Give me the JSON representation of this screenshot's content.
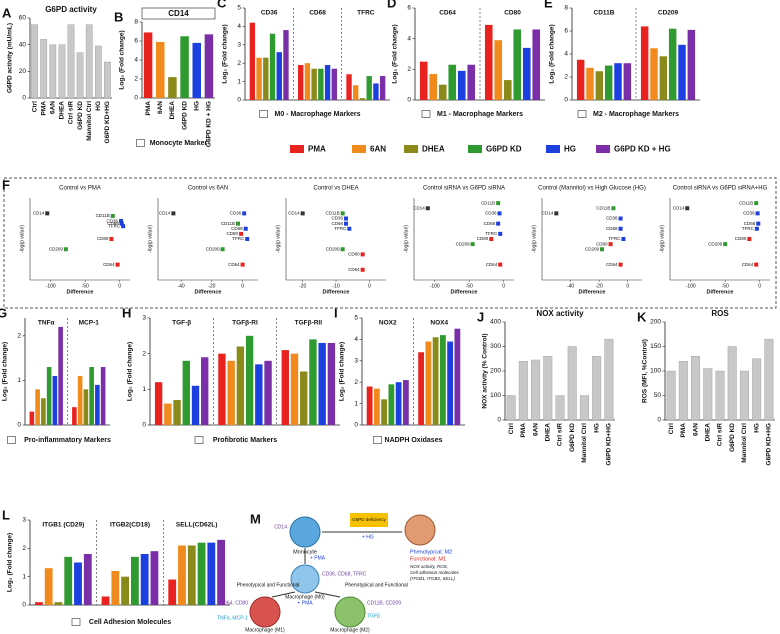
{
  "legend": [
    {
      "name": "PMA",
      "color": "#e8231f"
    },
    {
      "name": "6AN",
      "color": "#f08a1c"
    },
    {
      "name": "DHEA",
      "color": "#8a8a1a"
    },
    {
      "name": "G6PD KD",
      "color": "#2f9a2f"
    },
    {
      "name": "HG",
      "color": "#1c3fe0"
    },
    {
      "name": "G6PD KD + HG",
      "color": "#7a2fa8"
    }
  ],
  "chart_data": [
    {
      "type": "bar",
      "panel": "A",
      "title": "G6PD activity",
      "y_label": "G6PD activity (mU/mL)",
      "color": "#c8c8c8",
      "categories": [
        "Ctrl",
        "PMA",
        "6AN",
        "DHEA",
        "Ctrl siR",
        "G6PD KD",
        "Mannitol Ctrl",
        "HG",
        "G6PD KD+HG"
      ],
      "values": [
        55,
        44,
        40,
        40,
        55,
        34,
        55,
        39,
        27
      ],
      "ylim": [
        0,
        60
      ],
      "yticks": [
        0,
        20,
        40,
        60
      ]
    },
    {
      "type": "bar",
      "panel": "B",
      "title": "CD14",
      "y_label": "Log₂ (Fold change)",
      "x_label": "Monocyte Marker",
      "categories": [
        "PMA",
        "6AN",
        "DHEA",
        "G6PD KD",
        "HG",
        "G6PD KD + HG"
      ],
      "values": [
        6.9,
        5.9,
        2.2,
        6.5,
        5.8,
        6.7
      ],
      "ylim": [
        0,
        8
      ],
      "yticks": [
        0,
        2,
        4,
        6,
        8
      ]
    },
    {
      "type": "grouped_bar",
      "panel": "C",
      "y_label": "Log₂ (Fold change)",
      "x_label": "M0 - Macrophage Markers",
      "groups": [
        "CD36",
        "CD68",
        "TFRC"
      ],
      "values": [
        [
          4.2,
          2.3,
          2.3,
          3.6,
          2.6,
          3.8
        ],
        [
          1.9,
          2.0,
          1.7,
          1.7,
          1.9,
          1.7
        ],
        [
          1.4,
          0.8,
          0.1,
          1.3,
          0.9,
          1.3
        ]
      ],
      "ylim": [
        0,
        5
      ],
      "yticks": [
        0,
        1,
        2,
        3,
        4,
        5
      ]
    },
    {
      "type": "grouped_bar",
      "panel": "D",
      "y_label": "Log₂ (Fold change)",
      "x_label": "M1 - Macrophage Markers",
      "groups": [
        "CD64",
        "CD80"
      ],
      "values": [
        [
          2.5,
          1.7,
          1.0,
          2.3,
          1.9,
          2.3
        ],
        [
          4.9,
          3.9,
          1.3,
          4.6,
          3.4,
          4.6
        ]
      ],
      "ylim": [
        0,
        6
      ],
      "yticks": [
        0,
        2,
        4,
        6
      ]
    },
    {
      "type": "grouped_bar",
      "panel": "E",
      "y_label": "Log₂ (Fold change)",
      "x_label": "M2 - Macrophage Markers",
      "groups": [
        "CD11B",
        "CD209"
      ],
      "values": [
        [
          3.5,
          2.8,
          2.5,
          3.0,
          3.2,
          3.2
        ],
        [
          6.4,
          4.5,
          3.8,
          6.2,
          4.8,
          6.1
        ]
      ],
      "ylim": [
        0,
        8
      ],
      "yticks": [
        0,
        2,
        4,
        6,
        8
      ]
    },
    {
      "type": "scatter",
      "panel": "F",
      "title": "Control vs PMA",
      "y_label": "-log(p value)",
      "x_label": "Difference",
      "point_labels": [
        "CD14",
        "CD11B",
        "CD209",
        "CD36",
        "CD68",
        "TFRC",
        "CD80",
        "CD64"
      ],
      "point_colors": [
        "#333333",
        "#2f9a2f",
        "#2f9a2f",
        "#1c3fe0",
        "#1c3fe0",
        "#1c3fe0",
        "#e8231f",
        "#e8231f"
      ],
      "x": [
        -105,
        -10,
        -78,
        2,
        3,
        5,
        -12,
        -3
      ],
      "y": [
        13,
        12.5,
        6,
        11.5,
        11,
        10.5,
        8,
        3
      ],
      "xlim": [
        -130,
        15
      ],
      "xticks": [
        -100,
        -50,
        0
      ],
      "ylim": [
        0,
        16
      ]
    },
    {
      "type": "scatter",
      "title": "Control vs 6AN",
      "y_label": "-log(p value)",
      "x_label": "Difference",
      "point_labels": [
        "CD14",
        "CD11B",
        "CD209",
        "CD36",
        "CD68",
        "TFRC",
        "CD80",
        "CD64"
      ],
      "point_colors": [
        "#333333",
        "#2f9a2f",
        "#2f9a2f",
        "#1c3fe0",
        "#1c3fe0",
        "#1c3fe0",
        "#e8231f",
        "#e8231f"
      ],
      "x": [
        -45,
        -3,
        -13,
        1,
        2,
        3,
        -1,
        0
      ],
      "y": [
        13,
        11,
        6,
        13,
        10,
        8,
        9,
        3
      ],
      "xlim": [
        -55,
        10
      ],
      "xticks": [
        -40,
        -20,
        0
      ],
      "ylim": [
        0,
        16
      ]
    },
    {
      "type": "scatter",
      "title": "Control vs DHEA",
      "y_label": "-log(p value)",
      "x_label": "Difference",
      "point_labels": [
        "CD14",
        "CD11B",
        "CD209",
        "CD36",
        "CD68",
        "TFRC",
        "CD80",
        "CD64"
      ],
      "point_colors": [
        "#333333",
        "#2f9a2f",
        "#2f9a2f",
        "#1c3fe0",
        "#1c3fe0",
        "#1c3fe0",
        "#e8231f",
        "#e8231f"
      ],
      "x": [
        -20,
        -8,
        -8,
        -7,
        -7,
        -6,
        -2,
        -2
      ],
      "y": [
        13,
        13,
        6,
        12,
        11,
        10,
        5,
        2
      ],
      "xlim": [
        -25,
        5
      ],
      "xticks": [
        -20,
        -10,
        0
      ],
      "ylim": [
        0,
        16
      ]
    },
    {
      "type": "scatter",
      "title": "Control siRNA vs G6PD siRNA",
      "y_label": "-log(p value)",
      "x_label": "Difference",
      "point_labels": [
        "CD14",
        "CD11B",
        "CD209",
        "CD36",
        "CD68",
        "TFRC",
        "CD80",
        "CD64"
      ],
      "point_colors": [
        "#333333",
        "#2f9a2f",
        "#2f9a2f",
        "#1c3fe0",
        "#1c3fe0",
        "#1c3fe0",
        "#e8231f",
        "#e8231f"
      ],
      "x": [
        -110,
        -8,
        -45,
        -6,
        -8,
        -5,
        -18,
        -5
      ],
      "y": [
        14,
        15,
        7,
        13,
        11,
        9,
        8,
        3
      ],
      "xlim": [
        -130,
        15
      ],
      "xticks": [
        -100,
        -50,
        0
      ],
      "ylim": [
        0,
        16
      ]
    },
    {
      "type": "scatter",
      "title": "Control (Mannitol) vs High Glucose (HG)",
      "y_label": "-log(p value)",
      "x_label": "Difference",
      "point_labels": [
        "CD14",
        "CD11B",
        "CD209",
        "CD36",
        "CD68",
        "TFRC",
        "CD80",
        "CD64"
      ],
      "point_colors": [
        "#333333",
        "#2f9a2f",
        "#2f9a2f",
        "#1c3fe0",
        "#1c3fe0",
        "#1c3fe0",
        "#e8231f",
        "#e8231f"
      ],
      "x": [
        -50,
        -10,
        -18,
        -5,
        -5,
        -3,
        -12,
        -5
      ],
      "y": [
        13,
        14,
        6,
        12,
        10,
        8,
        7,
        3
      ],
      "xlim": [
        -60,
        10
      ],
      "xticks": [
        -40,
        -20,
        0
      ],
      "ylim": [
        0,
        16
      ]
    },
    {
      "type": "scatter",
      "title": "Control siRNA vs G6PD siRNA+HG",
      "y_label": "-log(p value)",
      "x_label": "Difference",
      "point_labels": [
        "CD14",
        "CD11B",
        "CD209",
        "CD36",
        "CD68",
        "TFRC",
        "CD80",
        "CD64"
      ],
      "point_colors": [
        "#333333",
        "#2f9a2f",
        "#2f9a2f",
        "#1c3fe0",
        "#1c3fe0",
        "#1c3fe0",
        "#e8231f",
        "#e8231f"
      ],
      "x": [
        -105,
        -5,
        -50,
        -3,
        -2,
        -4,
        -15,
        -5
      ],
      "y": [
        14,
        15,
        7,
        13,
        11,
        10,
        8,
        3
      ],
      "xlim": [
        -130,
        15
      ],
      "xticks": [
        -100,
        -50,
        0
      ],
      "ylim": [
        0,
        16
      ]
    },
    {
      "type": "grouped_bar",
      "panel": "G",
      "y_label": "Log₂ (Fold change)",
      "x_label": "Pro-inflammatory Markers",
      "groups": [
        "TNFα",
        "MCP-1"
      ],
      "values": [
        [
          0.3,
          0.8,
          0.6,
          1.3,
          1.1,
          2.2
        ],
        [
          0.4,
          1.1,
          0.8,
          1.3,
          0.9,
          1.3
        ]
      ],
      "ylim": [
        0,
        2.4
      ],
      "yticks": [
        0,
        1,
        2
      ]
    },
    {
      "type": "grouped_bar",
      "panel": "H",
      "y_label": "Log₂ (Fold change)",
      "x_label": "Profibrotic Markers",
      "groups": [
        "TGF-β",
        "TGFβ-RI",
        "TGFβ-RII"
      ],
      "values": [
        [
          1.2,
          0.6,
          0.7,
          1.8,
          1.1,
          1.9
        ],
        [
          2.0,
          1.8,
          2.2,
          2.5,
          1.7,
          1.8
        ],
        [
          2.1,
          2.0,
          1.5,
          2.4,
          2.3,
          2.3
        ]
      ],
      "ylim": [
        0,
        3
      ],
      "yticks": [
        0,
        1,
        2,
        3
      ]
    },
    {
      "type": "grouped_bar",
      "panel": "I",
      "y_label": "Log₂ (Fold change)",
      "x_label": "NADPH Oxidases",
      "groups": [
        "NOX2",
        "NOX4"
      ],
      "values": [
        [
          1.8,
          1.7,
          1.2,
          1.9,
          2.0,
          2.1
        ],
        [
          3.4,
          3.9,
          4.1,
          4.2,
          3.9,
          4.5
        ]
      ],
      "ylim": [
        0,
        5
      ],
      "yticks": [
        0,
        1,
        2,
        3,
        4,
        5
      ]
    },
    {
      "type": "bar",
      "panel": "J",
      "title": "NOX activity",
      "y_label": "NOX activity (% Control)",
      "color": "#c8c8c8",
      "categories": [
        "Ctrl",
        "PMA",
        "6AN",
        "DHEA",
        "Ctrl siR",
        "G6PD KD",
        "Mannitol Ctrl",
        "HG",
        "G6PD KD+HG"
      ],
      "values": [
        100,
        240,
        245,
        260,
        100,
        300,
        100,
        260,
        330
      ],
      "ylim": [
        0,
        400
      ],
      "yticks": [
        0,
        100,
        200,
        300,
        400
      ]
    },
    {
      "type": "bar",
      "panel": "K",
      "title": "ROS",
      "y_label": "ROS (MFI, %Control)",
      "color": "#c8c8c8",
      "categories": [
        "Ctrl",
        "PMA",
        "6AN",
        "DHEA",
        "Ctrl siR",
        "G6PD KD",
        "Mannitol Ctrl",
        "HG",
        "G6PD KD+HG"
      ],
      "values": [
        100,
        120,
        130,
        105,
        100,
        150,
        100,
        125,
        165
      ],
      "ylim": [
        0,
        200
      ],
      "yticks": [
        0,
        50,
        100,
        150,
        200
      ]
    },
    {
      "type": "grouped_bar",
      "panel": "L",
      "y_label": "Log₂ (Fold change)",
      "x_label": "Cell Adhesion Molecules",
      "groups": [
        "ITGB1 (CD29)",
        "ITGB2(CD18)",
        "SELL(CD62L)"
      ],
      "values": [
        [
          0.1,
          1.3,
          0.1,
          1.7,
          1.5,
          1.8
        ],
        [
          0.3,
          1.2,
          1.0,
          1.7,
          1.8,
          1.9
        ],
        [
          0.9,
          2.1,
          2.1,
          2.2,
          2.2,
          2.3
        ]
      ],
      "ylim": [
        0,
        3
      ],
      "yticks": [
        0,
        1,
        2,
        3
      ]
    }
  ],
  "diagram": {
    "texts": [
      "M",
      "CD14",
      "Monocyte",
      "+ PMA",
      "G6PD deficiency",
      "+ HG",
      "CD36, CD68, TFRC",
      "Macrophage (M0)",
      "+ PMA",
      "Phenotypical and Functional",
      "Phenotypical and Functional",
      "CD64, CD80",
      "TNFα, MCP-1",
      "Macrophage (M1)",
      "CD11B, CD209",
      "TGFβ",
      "Macrophage (M2)",
      "Phenotypical: M2",
      "Functional: M1",
      "NOX activity, ROS,",
      "Cell adhesion molecules",
      "(ITGB1, ITGB2, SELL)"
    ]
  }
}
